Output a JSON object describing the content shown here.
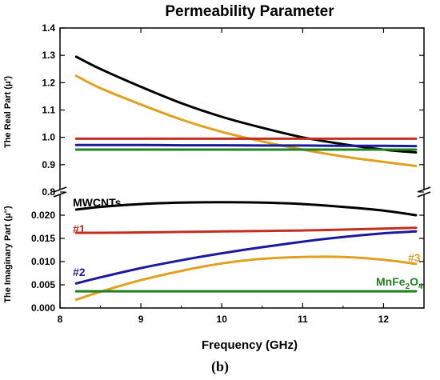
{
  "chart_data": {
    "type": "line",
    "title": "Permeability Parameter",
    "caption": "(b)",
    "xlabel": "Frequency (GHz)",
    "xlim": [
      8,
      12.5
    ],
    "xticks": [
      "8",
      "9",
      "10",
      "11",
      "12"
    ],
    "x_values": [
      8.2,
      8.5,
      9.0,
      9.5,
      10.0,
      10.5,
      11.0,
      11.5,
      12.0,
      12.4
    ],
    "top_panel": {
      "ylabel": "The Real Part (μ')",
      "ylim": [
        0.8,
        1.4
      ],
      "yticks": [
        "0.8",
        "0.9",
        "1.0",
        "1.1",
        "1.2",
        "1.3",
        "1.4"
      ],
      "series": [
        {
          "color": "#000000",
          "values": [
            1.295,
            1.25,
            1.185,
            1.125,
            1.075,
            1.035,
            1.0,
            0.975,
            0.955,
            0.945
          ]
        },
        {
          "color": "#e0a020",
          "values": [
            1.225,
            1.18,
            1.12,
            1.065,
            1.02,
            0.985,
            0.955,
            0.93,
            0.91,
            0.895
          ]
        },
        {
          "color": "#c03020",
          "values": [
            0.995,
            0.995,
            0.995,
            0.995,
            0.995,
            0.995,
            0.995,
            0.995,
            0.995,
            0.995
          ]
        },
        {
          "color": "#1a1a9a",
          "values": [
            0.972,
            0.972,
            0.972,
            0.971,
            0.971,
            0.97,
            0.97,
            0.969,
            0.969,
            0.968
          ]
        },
        {
          "color": "#208020",
          "values": [
            0.955,
            0.955,
            0.955,
            0.955,
            0.955,
            0.955,
            0.955,
            0.955,
            0.955,
            0.955
          ]
        }
      ]
    },
    "bottom_panel": {
      "ylabel": "The Imaginary Part (μ'')",
      "ylim": [
        0.0,
        0.025
      ],
      "yticks": [
        "0.000",
        "0.005",
        "0.010",
        "0.015",
        "0.020"
      ],
      "series": [
        {
          "name": "MWCNTs",
          "color": "#000000",
          "values": [
            0.0212,
            0.0218,
            0.0224,
            0.0227,
            0.0228,
            0.0227,
            0.0224,
            0.0218,
            0.021,
            0.02
          ]
        },
        {
          "name": "#1",
          "color": "#c03020",
          "values": [
            0.0162,
            0.0162,
            0.0163,
            0.0164,
            0.0165,
            0.0166,
            0.0167,
            0.0169,
            0.0171,
            0.0173
          ]
        },
        {
          "name": "#2",
          "color": "#1a1a9a",
          "values": [
            0.0053,
            0.0066,
            0.0086,
            0.0103,
            0.0118,
            0.0131,
            0.0143,
            0.0153,
            0.0161,
            0.0165
          ]
        },
        {
          "name": "#3",
          "color": "#e0a020",
          "values": [
            0.0018,
            0.0035,
            0.006,
            0.008,
            0.0096,
            0.0106,
            0.011,
            0.011,
            0.0104,
            0.0095
          ]
        },
        {
          "name": "MnFe2O4",
          "color": "#208020",
          "values": [
            0.0036,
            0.0036,
            0.0036,
            0.0036,
            0.0036,
            0.0036,
            0.0036,
            0.0036,
            0.0036,
            0.0036
          ]
        }
      ]
    }
  }
}
